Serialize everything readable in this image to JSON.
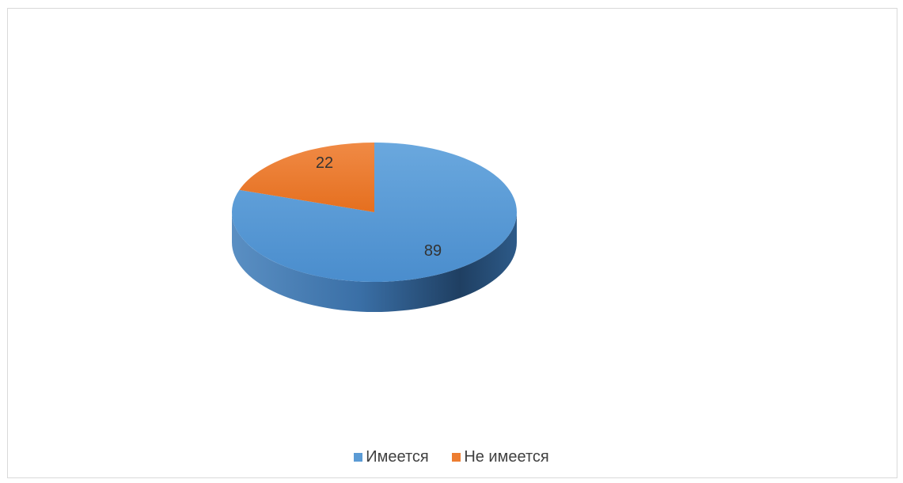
{
  "chart_data": {
    "type": "pie",
    "style": "3d",
    "categories": [
      "Имеется",
      "Не имеется"
    ],
    "values": [
      89,
      22
    ],
    "colors": [
      "#5b9bd5",
      "#ed7d31"
    ],
    "data_labels": [
      "89",
      "22"
    ],
    "legend_position": "bottom",
    "title": ""
  }
}
